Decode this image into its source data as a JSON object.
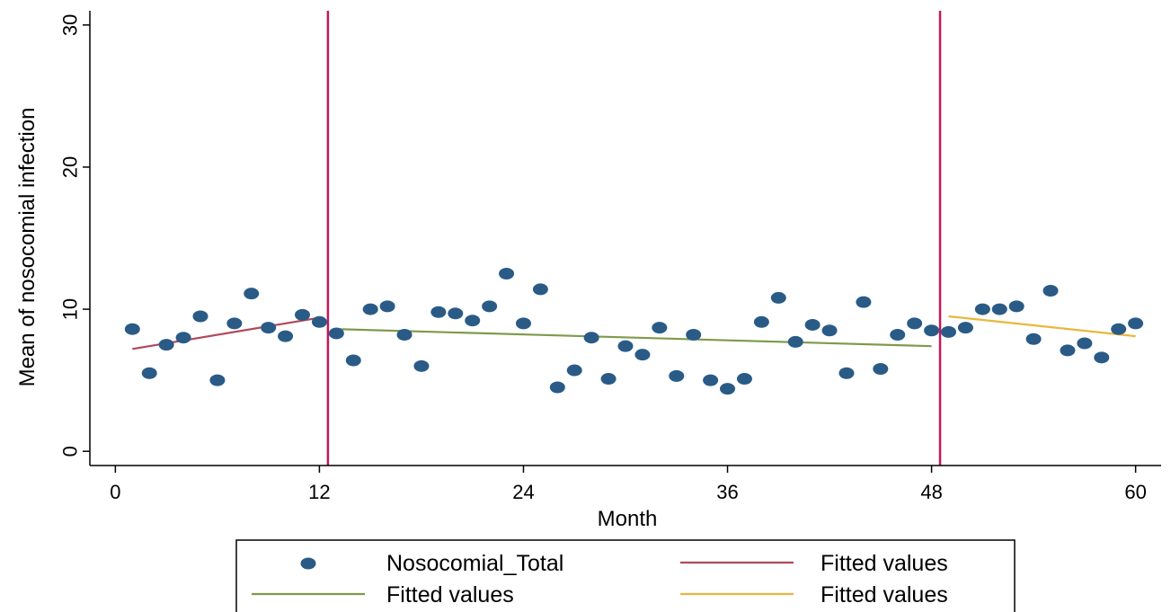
{
  "chart_data": {
    "type": "scatter",
    "xlabel": "Month",
    "ylabel": "Mean of nosocomial infection",
    "xlim": [
      -1.5,
      61.5
    ],
    "ylim": [
      -1,
      31
    ],
    "xticks": [
      0,
      12,
      24,
      36,
      48,
      60
    ],
    "yticks": [
      0,
      10,
      20,
      30
    ],
    "grid": false,
    "legend_position": "bottom",
    "colors": {
      "points": "#2a5b87",
      "fit1": "#b0495a",
      "fit2": "#7e9a4c",
      "fit3": "#e9b73c",
      "intervention_line": "#c2185b"
    },
    "intervention_lines": [
      12.5,
      48.5
    ],
    "series": [
      {
        "name": "Nosocomial_Total",
        "kind": "scatter",
        "x": [
          1,
          2,
          3,
          4,
          5,
          6,
          7,
          8,
          9,
          10,
          11,
          12,
          13,
          14,
          15,
          16,
          17,
          18,
          19,
          20,
          21,
          22,
          23,
          24,
          25,
          26,
          27,
          28,
          29,
          30,
          31,
          32,
          33,
          34,
          35,
          36,
          37,
          38,
          39,
          40,
          41,
          42,
          43,
          44,
          45,
          46,
          47,
          48,
          49,
          50,
          51,
          52,
          53,
          54,
          55,
          56,
          57,
          58,
          59,
          60
        ],
        "y": [
          8.6,
          5.5,
          7.5,
          8.0,
          9.5,
          5.0,
          9.0,
          11.1,
          8.7,
          8.1,
          9.6,
          9.1,
          8.3,
          6.4,
          10.0,
          10.2,
          8.2,
          6.0,
          9.8,
          9.7,
          9.2,
          10.2,
          12.5,
          9.0,
          11.4,
          4.5,
          5.7,
          8.0,
          5.1,
          7.4,
          6.8,
          8.7,
          5.3,
          8.2,
          5.0,
          4.4,
          5.1,
          9.1,
          10.8,
          7.7,
          8.9,
          8.5,
          5.5,
          10.5,
          5.8,
          8.2,
          9.0,
          8.5,
          8.4,
          8.7,
          10.0,
          10.0,
          10.2,
          7.9,
          11.3,
          7.1,
          7.6,
          6.6,
          8.6,
          9.0
        ]
      },
      {
        "name": "Fitted values",
        "kind": "line",
        "colorKey": "fit1",
        "x": [
          1,
          12
        ],
        "y": [
          7.2,
          9.4
        ]
      },
      {
        "name": "Fitted values",
        "kind": "line",
        "colorKey": "fit2",
        "x": [
          13,
          48
        ],
        "y": [
          8.6,
          7.4
        ]
      },
      {
        "name": "Fitted values",
        "kind": "line",
        "colorKey": "fit3",
        "x": [
          49,
          60
        ],
        "y": [
          9.5,
          8.1
        ]
      }
    ]
  },
  "legend": {
    "items": [
      {
        "label": "Nosocomial_Total",
        "type": "marker",
        "colorKey": "points"
      },
      {
        "label": "Fitted values",
        "type": "line",
        "colorKey": "fit1"
      },
      {
        "label": "Fitted values",
        "type": "line",
        "colorKey": "fit2"
      },
      {
        "label": "Fitted values",
        "type": "line",
        "colorKey": "fit3"
      }
    ]
  }
}
